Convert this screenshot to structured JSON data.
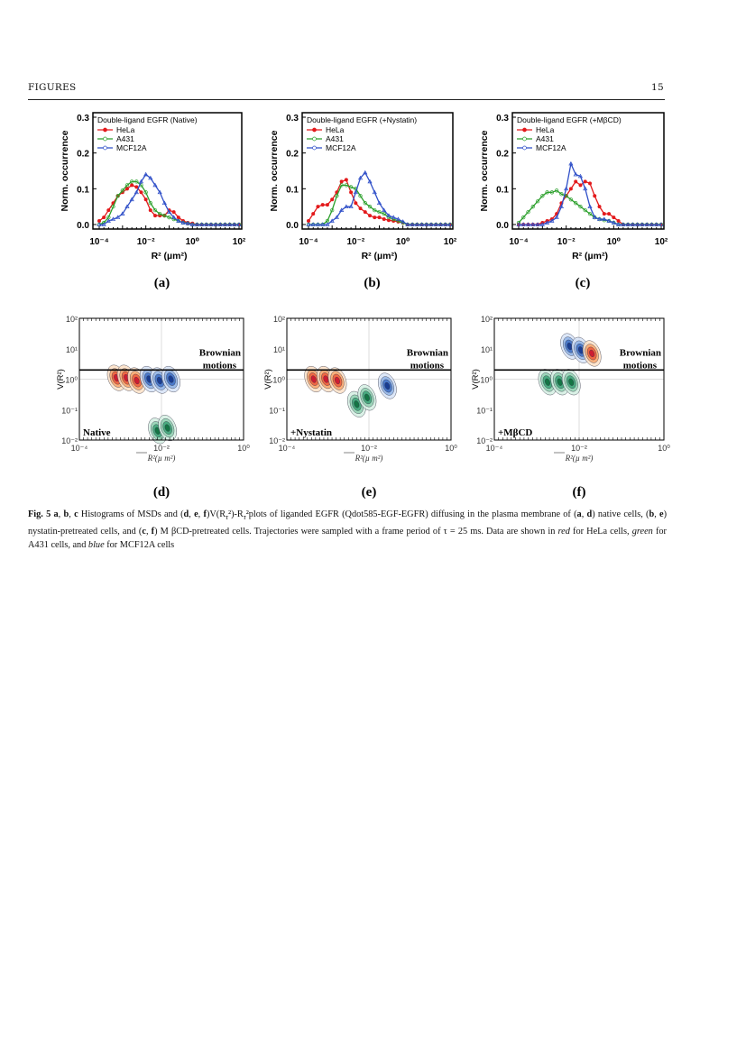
{
  "header": {
    "left": "FIGURES",
    "page_number": "15"
  },
  "colors": {
    "HeLa": "#e31a1c",
    "A431": "#2ca02c",
    "MCF12A": "#2f4fc8"
  },
  "chart_data": [
    {
      "panel": "(a)",
      "type": "line",
      "title": "Double-ligand EGFR (Native)",
      "xlabel": "R² (µm²)",
      "ylabel": "Norm. occurrence",
      "xscale": "log",
      "xlim": [
        0.0001,
        100
      ],
      "ylim": [
        0,
        0.3
      ],
      "xticks": [
        "10⁻⁴",
        "10⁻²",
        "10⁰",
        "10²"
      ],
      "yticks": [
        "0.0",
        "0.1",
        "0.2",
        "0.3"
      ],
      "legend": "top-left",
      "x": [
        0.0001,
        0.000158,
        0.000251,
        0.000398,
        0.000631,
        0.001,
        0.00158,
        0.00251,
        0.00398,
        0.00631,
        0.01,
        0.0158,
        0.0251,
        0.0398,
        0.0631,
        0.1,
        0.158,
        0.251,
        0.398,
        0.631,
        1,
        1.58,
        2.51,
        3.98,
        6.31,
        10,
        15.8,
        25.1,
        39.8,
        63.1,
        100
      ],
      "series": [
        {
          "name": "HeLa",
          "marker": "filled-circle",
          "values": [
            0.01,
            0.02,
            0.04,
            0.06,
            0.08,
            0.09,
            0.1,
            0.11,
            0.105,
            0.09,
            0.07,
            0.04,
            0.025,
            0.025,
            0.025,
            0.04,
            0.035,
            0.02,
            0.01,
            0.005,
            0.003,
            0,
            0,
            0,
            0,
            0,
            0,
            0,
            0,
            0,
            0
          ]
        },
        {
          "name": "A431",
          "marker": "open-circle",
          "values": [
            0,
            0.005,
            0.02,
            0.05,
            0.08,
            0.095,
            0.11,
            0.12,
            0.12,
            0.11,
            0.09,
            0.06,
            0.04,
            0.03,
            0.025,
            0.02,
            0.015,
            0.01,
            0.005,
            0.003,
            0,
            0,
            0,
            0,
            0,
            0,
            0,
            0,
            0,
            0,
            0
          ]
        },
        {
          "name": "MCF12A",
          "marker": "open-triangle",
          "values": [
            0,
            0,
            0.01,
            0.015,
            0.02,
            0.03,
            0.05,
            0.07,
            0.09,
            0.12,
            0.14,
            0.13,
            0.11,
            0.09,
            0.06,
            0.035,
            0.02,
            0.01,
            0.005,
            0.003,
            0,
            0,
            0,
            0,
            0,
            0,
            0,
            0,
            0,
            0,
            0
          ]
        }
      ]
    },
    {
      "panel": "(b)",
      "type": "line",
      "title": "Double-ligand EGFR (+Nystatin)",
      "xlabel": "R² (µm²)",
      "ylabel": "Norm. occurrence",
      "xscale": "log",
      "xlim": [
        0.0001,
        100
      ],
      "ylim": [
        0,
        0.3
      ],
      "xticks": [
        "10⁻⁴",
        "10⁻²",
        "10⁰",
        "10²"
      ],
      "yticks": [
        "0.0",
        "0.1",
        "0.2",
        "0.3"
      ],
      "legend": "top-left",
      "x": [
        0.0001,
        0.000158,
        0.000251,
        0.000398,
        0.000631,
        0.001,
        0.00158,
        0.00251,
        0.00398,
        0.00631,
        0.01,
        0.0158,
        0.0251,
        0.0398,
        0.0631,
        0.1,
        0.158,
        0.251,
        0.398,
        0.631,
        1,
        1.58,
        2.51,
        3.98,
        6.31,
        10,
        15.8,
        25.1,
        39.8,
        63.1,
        100
      ],
      "series": [
        {
          "name": "HeLa",
          "marker": "filled-circle",
          "values": [
            0.01,
            0.03,
            0.05,
            0.055,
            0.055,
            0.07,
            0.09,
            0.12,
            0.125,
            0.09,
            0.06,
            0.045,
            0.035,
            0.025,
            0.02,
            0.02,
            0.015,
            0.012,
            0.01,
            0.008,
            0.005,
            0,
            0,
            0,
            0,
            0,
            0,
            0,
            0,
            0,
            0
          ]
        },
        {
          "name": "A431",
          "marker": "open-circle",
          "values": [
            0,
            0,
            0,
            0,
            0.01,
            0.04,
            0.08,
            0.11,
            0.11,
            0.105,
            0.1,
            0.08,
            0.06,
            0.05,
            0.04,
            0.035,
            0.03,
            0.02,
            0.015,
            0.01,
            0.005,
            0,
            0,
            0,
            0,
            0,
            0,
            0,
            0,
            0,
            0
          ]
        },
        {
          "name": "MCF12A",
          "marker": "open-triangle",
          "values": [
            0,
            0,
            0,
            0,
            0,
            0.01,
            0.02,
            0.04,
            0.05,
            0.05,
            0.09,
            0.13,
            0.145,
            0.12,
            0.09,
            0.06,
            0.04,
            0.025,
            0.02,
            0.015,
            0.008,
            0,
            0,
            0,
            0,
            0,
            0,
            0,
            0,
            0,
            0
          ]
        }
      ]
    },
    {
      "panel": "(c)",
      "type": "line",
      "title": "Double-ligand EGFR (+MβCD)",
      "xlabel": "R² (µm²)",
      "ylabel": "Norm. occurrence",
      "xscale": "log",
      "xlim": [
        0.0001,
        100
      ],
      "ylim": [
        0,
        0.3
      ],
      "xticks": [
        "10⁻⁴",
        "10⁻²",
        "10⁰",
        "10²"
      ],
      "yticks": [
        "0.0",
        "0.1",
        "0.2",
        "0.3"
      ],
      "legend": "top-left",
      "x": [
        0.0001,
        0.000158,
        0.000251,
        0.000398,
        0.000631,
        0.001,
        0.00158,
        0.00251,
        0.00398,
        0.00631,
        0.01,
        0.0158,
        0.0251,
        0.0398,
        0.0631,
        0.1,
        0.158,
        0.251,
        0.398,
        0.631,
        1,
        1.58,
        2.51,
        3.98,
        6.31,
        10,
        15.8,
        25.1,
        39.8,
        63.1,
        100
      ],
      "series": [
        {
          "name": "HeLa",
          "marker": "filled-circle",
          "values": [
            0,
            0,
            0,
            0,
            0,
            0.005,
            0.01,
            0.015,
            0.03,
            0.06,
            0.08,
            0.1,
            0.12,
            0.11,
            0.12,
            0.115,
            0.08,
            0.05,
            0.03,
            0.03,
            0.02,
            0.01,
            0,
            0,
            0,
            0,
            0,
            0,
            0,
            0,
            0
          ]
        },
        {
          "name": "A431",
          "marker": "open-circle",
          "values": [
            0.005,
            0.02,
            0.035,
            0.05,
            0.065,
            0.08,
            0.09,
            0.09,
            0.095,
            0.085,
            0.08,
            0.07,
            0.06,
            0.05,
            0.04,
            0.03,
            0.02,
            0.015,
            0.012,
            0.01,
            0.005,
            0,
            0,
            0,
            0,
            0,
            0,
            0,
            0,
            0,
            0
          ]
        },
        {
          "name": "MCF12A",
          "marker": "open-triangle",
          "values": [
            0,
            0,
            0,
            0,
            0,
            0,
            0.005,
            0.01,
            0.02,
            0.05,
            0.1,
            0.17,
            0.14,
            0.135,
            0.1,
            0.05,
            0.02,
            0.015,
            0.015,
            0.01,
            0.005,
            0,
            0,
            0,
            0,
            0,
            0,
            0,
            0,
            0,
            0
          ]
        }
      ]
    },
    {
      "panel": "(d)",
      "type": "contour",
      "xlabel": "R²(µ m²)",
      "ylabel": "V(R²)",
      "xscale": "log",
      "yscale": "log",
      "xlim": [
        0.0001,
        1
      ],
      "ylim": [
        0.01,
        100
      ],
      "xticks": [
        "10⁻⁴",
        "10⁻²",
        "10⁰"
      ],
      "yticks": [
        "10⁻²",
        "10⁻¹",
        "10⁰",
        "10¹",
        "10²"
      ],
      "brownian_line": 2,
      "annotation": "Brownian motions",
      "condition": "Native",
      "clusters": [
        {
          "series": "HeLa",
          "r2": [
            0.0008,
            0.0014,
            0.0025
          ],
          "v": [
            1.1,
            1.1,
            0.9
          ]
        },
        {
          "series": "MCF12A",
          "r2": [
            0.005,
            0.009,
            0.017
          ],
          "v": [
            1.0,
            0.9,
            1.0
          ]
        },
        {
          "series": "A431",
          "r2": [
            0.008,
            0.014
          ],
          "v": [
            0.02,
            0.025
          ]
        }
      ]
    },
    {
      "panel": "(e)",
      "type": "contour",
      "xlabel": "R²(µ m²)",
      "ylabel": "V(R²)",
      "xscale": "log",
      "yscale": "log",
      "xlim": [
        0.0001,
        1
      ],
      "ylim": [
        0.01,
        100
      ],
      "xticks": [
        "10⁻⁴",
        "10⁻²",
        "10⁰"
      ],
      "yticks": [
        "10⁻²",
        "10⁻¹",
        "10⁰",
        "10¹",
        "10²"
      ],
      "brownian_line": 2,
      "annotation": "Brownian motions",
      "condition": "+Nystatin",
      "clusters": [
        {
          "series": "HeLa",
          "r2": [
            0.00045,
            0.0009,
            0.0017
          ],
          "v": [
            1.0,
            1.0,
            0.9
          ]
        },
        {
          "series": "A431",
          "r2": [
            0.005,
            0.009
          ],
          "v": [
            0.15,
            0.25
          ]
        },
        {
          "series": "MCF12A",
          "r2": [
            0.028
          ],
          "v": [
            0.6
          ]
        }
      ]
    },
    {
      "panel": "(f)",
      "type": "contour",
      "xlabel": "R²(µ m²)",
      "ylabel": "V(R²)",
      "xscale": "log",
      "yscale": "log",
      "xlim": [
        0.0001,
        1
      ],
      "ylim": [
        0.01,
        100
      ],
      "xticks": [
        "10⁻⁴",
        "10⁻²",
        "10⁰"
      ],
      "yticks": [
        "10⁻²",
        "10⁻¹",
        "10⁰",
        "10¹",
        "10²"
      ],
      "brownian_line": 2,
      "annotation": "Brownian motions",
      "condition": "+MβCD",
      "clusters": [
        {
          "series": "A431",
          "r2": [
            0.0018,
            0.0035,
            0.0065
          ],
          "v": [
            0.8,
            0.8,
            0.8
          ]
        },
        {
          "series": "MCF12A",
          "r2": [
            0.006,
            0.011
          ],
          "v": [
            12,
            9
          ]
        },
        {
          "series": "HeLa",
          "r2": [
            0.02
          ],
          "v": [
            7
          ]
        }
      ]
    }
  ],
  "caption": {
    "label": "Fig. 5",
    "parts": [
      " ",
      "a",
      ", ",
      "b",
      ", ",
      "c",
      " Histograms of MSDs and (",
      "d",
      ", ",
      "e",
      ", ",
      "f",
      ")V(R",
      "τ",
      "²)-R",
      "τ",
      "²plots of liganded EGFR (Qdot585-EGF-EGFR) diffusing in the plasma membrane of (",
      "a",
      ", ",
      "d",
      ") native cells, (",
      "b",
      ", ",
      "e",
      ") nystatin-pretreated cells, and (",
      "c",
      ", ",
      "f",
      ") M βCD-pretreated cells. Trajectories were sampled with a frame period of τ = 25 ms. Data are shown in ",
      "red",
      " for HeLa cells, ",
      "green",
      " for A431 cells, and ",
      "blue",
      " for MCF12A cells"
    ]
  }
}
